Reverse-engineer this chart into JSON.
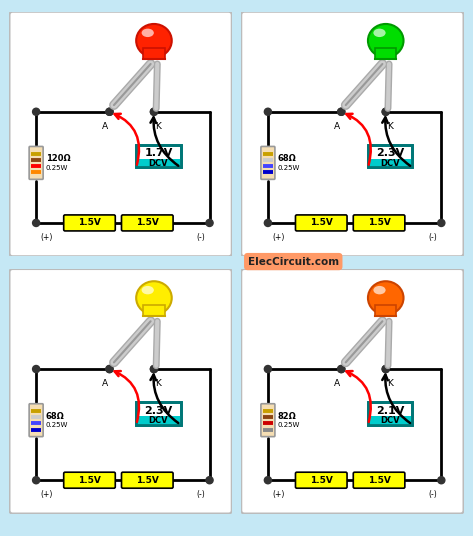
{
  "background": "#c5e8f5",
  "panels": [
    {
      "led_color": "#ff2200",
      "led_highlight": "#ff8866",
      "led_rim": "#cc1100",
      "probe_body": "#cc0000",
      "probe_tip": "#888888",
      "resistor_ohm": "120Ω",
      "resistor_watt": "0.25W",
      "voltage": "1.7V",
      "res_bands": [
        "#ff8800",
        "#ff0000",
        "#8b4513",
        "#c8a000"
      ],
      "res_body": "#f5deb3"
    },
    {
      "led_color": "#00dd00",
      "led_highlight": "#88ff88",
      "led_rim": "#009900",
      "probe_body": "#009900",
      "probe_tip": "#888888",
      "resistor_ohm": "68Ω",
      "resistor_watt": "0.25W",
      "voltage": "2.3V",
      "res_bands": [
        "#0000cc",
        "#4444ff",
        "#cccccc",
        "#c8a000"
      ],
      "res_body": "#f5deb3"
    },
    {
      "led_color": "#ffee00",
      "led_highlight": "#ffff88",
      "led_rim": "#ccaa00",
      "probe_body": "#cc8800",
      "probe_tip": "#888888",
      "resistor_ohm": "68Ω",
      "resistor_watt": "0.25W",
      "voltage": "2.3V",
      "res_bands": [
        "#0000cc",
        "#4444ff",
        "#cccccc",
        "#c8a000"
      ],
      "res_body": "#f5deb3"
    },
    {
      "led_color": "#ff6600",
      "led_highlight": "#ffaa55",
      "led_rim": "#cc4400",
      "probe_body": "#cc5500",
      "probe_tip": "#888888",
      "resistor_ohm": "82Ω",
      "resistor_watt": "0.25W",
      "voltage": "2.1V",
      "res_bands": [
        "#888888",
        "#cc0000",
        "#8b4513",
        "#c8a000"
      ],
      "res_body": "#f5deb3"
    }
  ],
  "watermark": "ElecCircuit.com",
  "watermark_bg": "#ff9966",
  "battery_color": "#ffff00",
  "dcv_bg": "#00cccc",
  "dcv_border": "#007777",
  "dot_color": "#333333",
  "wire_color": "#000000"
}
